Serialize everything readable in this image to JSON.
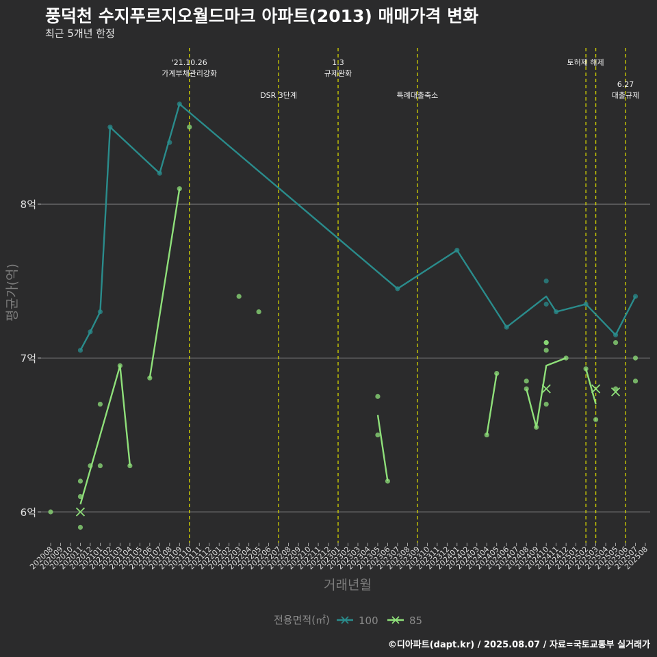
{
  "title": "풍덕천 수지푸르지오월드마크 아파트(2013) 매매가격 변화",
  "subtitle": "최근 5개년 한정",
  "footer": "©디아파트(dapt.kr) / 2025.08.07 / 자료=국토교통부 실거래가",
  "chart_data": {
    "type": "line",
    "xlabel": "거래년월",
    "ylabel": "평균가(억)",
    "x": [
      "202008",
      "202009",
      "202010",
      "202011",
      "202012",
      "202101",
      "202102",
      "202103",
      "202104",
      "202105",
      "202106",
      "202107",
      "202108",
      "202109",
      "202110",
      "202111",
      "202112",
      "202201",
      "202202",
      "202203",
      "202204",
      "202205",
      "202206",
      "202207",
      "202208",
      "202209",
      "202210",
      "202211",
      "202212",
      "202301",
      "202302",
      "202303",
      "202304",
      "202305",
      "202306",
      "202307",
      "202308",
      "202309",
      "202310",
      "202311",
      "202312",
      "202401",
      "202402",
      "202403",
      "202404",
      "202405",
      "202406",
      "202407",
      "202408",
      "202409",
      "202410",
      "202411",
      "202412",
      "202501",
      "202502",
      "202503",
      "202504",
      "202505",
      "202506",
      "202507",
      "202508"
    ],
    "ylim": [
      5.8,
      9.05
    ],
    "yticks": [
      6,
      7,
      8
    ],
    "ytick_labels": [
      "6억",
      "7억",
      "8억"
    ],
    "grid": true,
    "legend": {
      "title": "전용면적(㎡)",
      "placement": "bottom"
    },
    "series": [
      {
        "name": "100",
        "color": "#2a8c8c",
        "line": [
          [
            "202011",
            7.05
          ],
          [
            "202012",
            7.17
          ],
          [
            "202101",
            7.3
          ],
          [
            "202102",
            8.5
          ],
          [
            "202107",
            8.2
          ],
          [
            "202109",
            8.65
          ],
          [
            "202307",
            7.45
          ],
          [
            "202401",
            7.7
          ],
          [
            "202406",
            7.2
          ],
          [
            "202410",
            7.4
          ],
          [
            "202411",
            7.3
          ],
          [
            "202502",
            7.35
          ],
          [
            "202505",
            7.15
          ],
          [
            "202507",
            7.4
          ]
        ],
        "points": [
          [
            "202011",
            7.05
          ],
          [
            "202012",
            7.17
          ],
          [
            "202101",
            7.3
          ],
          [
            "202102",
            8.5
          ],
          [
            "202107",
            8.2
          ],
          [
            "202108",
            8.4
          ],
          [
            "202109",
            8.65
          ],
          [
            "202307",
            7.45
          ],
          [
            "202401",
            7.7
          ],
          [
            "202406",
            7.2
          ],
          [
            "202410",
            7.5
          ],
          [
            "202410",
            7.35
          ],
          [
            "202411",
            7.3
          ],
          [
            "202502",
            7.35
          ],
          [
            "202505",
            7.15
          ],
          [
            "202507",
            7.4
          ]
        ],
        "cross": []
      },
      {
        "name": "85",
        "color": "#8fe07a",
        "line_segments": [
          [
            [
              "202011",
              6.05
            ],
            [
              "202103",
              6.95
            ],
            [
              "202104",
              6.3
            ]
          ],
          [
            [
              "202106",
              6.87
            ],
            [
              "202109",
              8.1
            ]
          ],
          [
            [
              "202305",
              6.63
            ],
            [
              "202306",
              6.2
            ]
          ],
          [
            [
              "202404",
              6.5
            ],
            [
              "202405",
              6.9
            ]
          ],
          [
            [
              "202408",
              6.8
            ],
            [
              "202409",
              6.55
            ],
            [
              "202410",
              6.95
            ],
            [
              "202412",
              7.0
            ]
          ],
          [
            [
              "202502",
              6.93
            ],
            [
              "202503",
              6.7
            ]
          ]
        ],
        "points": [
          [
            "202008",
            6.0
          ],
          [
            "202011",
            6.2
          ],
          [
            "202011",
            6.1
          ],
          [
            "202011",
            5.9
          ],
          [
            "202012",
            6.3
          ],
          [
            "202101",
            6.7
          ],
          [
            "202101",
            6.3
          ],
          [
            "202103",
            6.95
          ],
          [
            "202104",
            6.3
          ],
          [
            "202106",
            6.87
          ],
          [
            "202109",
            8.1
          ],
          [
            "202110",
            8.5
          ],
          [
            "202203",
            7.4
          ],
          [
            "202205",
            7.3
          ],
          [
            "202305",
            6.75
          ],
          [
            "202305",
            6.5
          ],
          [
            "202306",
            6.2
          ],
          [
            "202404",
            6.5
          ],
          [
            "202405",
            6.9
          ],
          [
            "202408",
            6.85
          ],
          [
            "202408",
            6.8
          ],
          [
            "202409",
            6.55
          ],
          [
            "202410",
            7.1
          ],
          [
            "202410",
            7.1
          ],
          [
            "202410",
            7.05
          ],
          [
            "202410",
            6.7
          ],
          [
            "202412",
            7.0
          ],
          [
            "202502",
            6.93
          ],
          [
            "202503",
            6.6
          ],
          [
            "202505",
            6.8
          ],
          [
            "202505",
            7.1
          ],
          [
            "202507",
            7.0
          ],
          [
            "202507",
            6.85
          ]
        ],
        "cross": [
          [
            "202011",
            6.0
          ],
          [
            "202410",
            6.8
          ],
          [
            "202503",
            6.8
          ],
          [
            "202505",
            6.78
          ]
        ]
      }
    ],
    "annotations": [
      {
        "x": "202110",
        "lines": [
          "'21.10.26",
          "가계부채관리강화"
        ],
        "row": 0
      },
      {
        "x": "202207",
        "lines": [
          "DSR 3단계"
        ],
        "row": 1
      },
      {
        "x": "202301",
        "lines": [
          "1.3",
          "규제완화"
        ],
        "row": 0
      },
      {
        "x": "202309",
        "lines": [
          "특례대출축소"
        ],
        "row": 1
      },
      {
        "x": "202502",
        "lines": [],
        "row": 0
      },
      {
        "x": "202503",
        "lines": [
          "토허제 해제"
        ],
        "row": 0,
        "label_between": true
      },
      {
        "x": "202506",
        "lines": [
          "6.27",
          "대출규제"
        ],
        "row": 1
      }
    ]
  }
}
